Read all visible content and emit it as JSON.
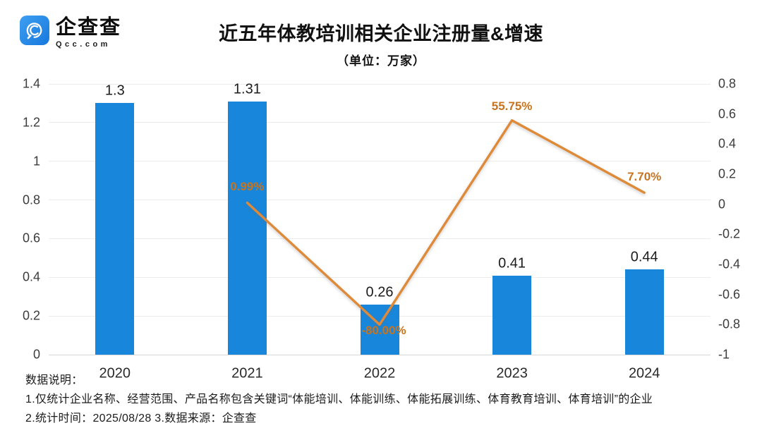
{
  "logo": {
    "name": "企查查",
    "domain": "Qcc.com",
    "icon": "qcc-spiral-icon",
    "badge_color": "#1f83e0"
  },
  "title": "近五年体教培训相关企业注册量&增速",
  "subtitle": "（单位：万家）",
  "footnotes": {
    "label": "数据说明：",
    "line1": "1.仅统计企业名称、经营范围、产品名称包含关键词“体能培训、体能训练、体能拓展训练、体育教育培训、体育培训”的企业",
    "line2": "2.统计时间：2025/08/28  3.数据来源：企查查"
  },
  "chart_data": {
    "type": "bar",
    "subtype": "bar+line combo, dual axis",
    "categories": [
      "2020",
      "2021",
      "2022",
      "2023",
      "2024"
    ],
    "series": [
      {
        "name": "企业注册量(万家)",
        "type": "bar",
        "axis": "left",
        "color": "#1886DB",
        "values": [
          1.3,
          1.31,
          0.26,
          0.41,
          0.44
        ],
        "labels": [
          "1.3",
          "1.31",
          "0.26",
          "0.41",
          "0.44"
        ]
      },
      {
        "name": "增速",
        "type": "line",
        "axis": "right",
        "color": "#DE8A39",
        "label_color": "#C8741F",
        "values": [
          null,
          0.0099,
          -0.8,
          0.5575,
          0.077
        ],
        "labels": [
          null,
          "0.99%",
          "-80.00%",
          "55.75%",
          "7.70%"
        ]
      }
    ],
    "left_axis": {
      "min": 0,
      "max": 1.4,
      "ticks": [
        "1.4",
        "1.2",
        "1",
        "0.8",
        "0.6",
        "0.4",
        "0.2",
        "0"
      ]
    },
    "right_axis": {
      "min": -1,
      "max": 0.8,
      "ticks": [
        "0.8",
        "0.6",
        "0.4",
        "0.2",
        "0",
        "-0.2",
        "-0.4",
        "-0.6",
        "-0.8",
        "-1"
      ]
    },
    "grid": true,
    "legend": "none"
  }
}
